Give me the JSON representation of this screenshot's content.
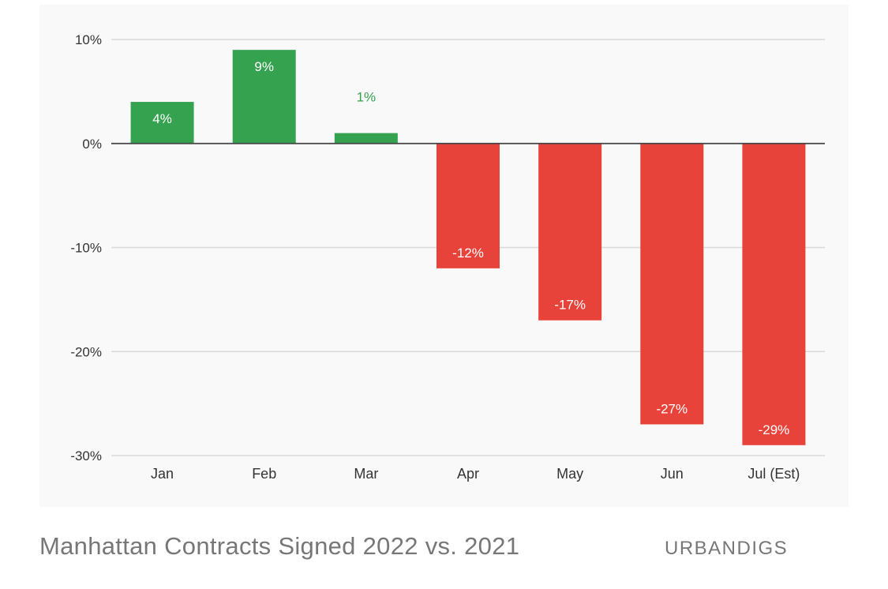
{
  "caption": "Manhattan Contracts Signed 2022 vs. 2021",
  "source": "URBANDIGS",
  "colors": {
    "positive": "#35a24f",
    "negative": "#e8433a",
    "grid": "#d9d9d9",
    "zero_line": "#444444",
    "tick_text": "#333333",
    "label_outside": "#35a24f"
  },
  "chart_data": {
    "type": "bar",
    "title": "",
    "xlabel": "",
    "ylabel": "",
    "categories": [
      "Jan",
      "Feb",
      "Mar",
      "Apr",
      "May",
      "Jun",
      "Jul (Est)"
    ],
    "values": [
      4,
      9,
      1,
      -12,
      -17,
      -27,
      -29
    ],
    "data_labels": [
      "4%",
      "9%",
      "1%",
      "-12%",
      "-17%",
      "-27%",
      "-29%"
    ],
    "ylim": [
      -30,
      10
    ],
    "yticks": [
      10,
      0,
      -10,
      -20,
      -30
    ],
    "ytick_labels": [
      "10%",
      "0%",
      "-10%",
      "-20%",
      "-30%"
    ],
    "grid": true,
    "legend": "none"
  }
}
